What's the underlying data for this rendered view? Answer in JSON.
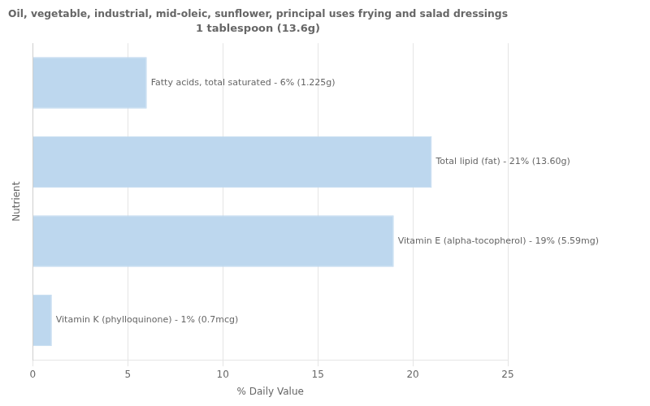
{
  "chart_data": {
    "type": "bar",
    "orientation": "horizontal",
    "title": "Oil, vegetable, industrial, mid-oleic, sunflower, principal uses frying and salad dressings",
    "subtitle": "1 tablespoon (13.6g)",
    "x_label": "% Daily Value",
    "y_label": "Nutrient",
    "categories": [
      "Vitamin K (phylloquinone) - 1% (0.7mcg)",
      "Vitamin E (alpha-tocopherol) - 19% (5.59mg)",
      "Total lipid (fat) - 21% (13.60g)",
      "Fatty acids, total saturated - 6% (1.225g)"
    ],
    "values": [
      1,
      19,
      21,
      6
    ],
    "color": "#bdd7ee",
    "xlim": [
      0,
      25
    ],
    "xticks": [
      0,
      5,
      10,
      15,
      20,
      25
    ],
    "grid": "x",
    "tick_labels": "x"
  }
}
